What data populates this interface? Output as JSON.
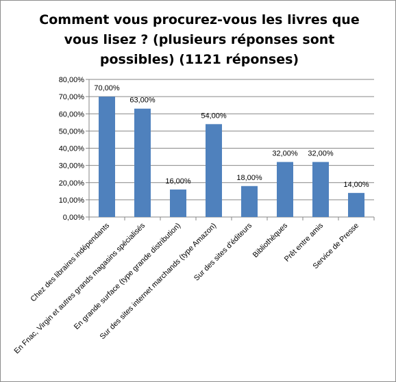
{
  "chart_data": {
    "type": "bar",
    "title_lines": [
      "Comment vous procurez-vous les livres que",
      "vous lisez ? (plusieurs réponses sont",
      "possibles) (1121 réponses)"
    ],
    "categories": [
      "Chez des libraires indépendants",
      "En Fnac, Virgin et autres grands magasins  spécialisés",
      "En grande surface (type grande distribution)",
      "Sur des sites internet marchands (type Amazon)",
      "Sur des sites d'éditeurs",
      "Bibliothèques",
      "Prêt entre amis",
      "Service de Presse"
    ],
    "values": [
      70,
      63,
      16,
      54,
      18,
      32,
      32,
      14
    ],
    "data_labels": [
      "70,00%",
      "63,00%",
      "16,00%",
      "54,00%",
      "18,00%",
      "32,00%",
      "32,00%",
      "14,00%"
    ],
    "ylim": [
      0,
      80
    ],
    "yticks": [
      "0,00%",
      "10,00%",
      "20,00%",
      "30,00%",
      "40,00%",
      "50,00%",
      "60,00%",
      "70,00%",
      "80,00%"
    ],
    "grid": true,
    "legend": "none",
    "bar_color": "#4F81BD",
    "grid_color": "#868686"
  }
}
